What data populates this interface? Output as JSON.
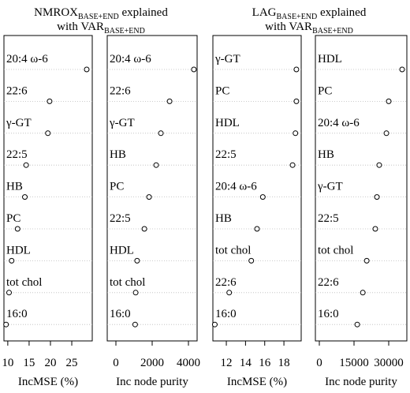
{
  "headers": [
    {
      "main": "NMROX",
      "main_sub": "BASE+END",
      "main_after": " explained",
      "line2": "with VAR",
      "line2_sub": "BASE+END"
    },
    {
      "main": "LAG",
      "main_sub": "BASE+END",
      "main_after": " explained",
      "line2": "with VAR",
      "line2_sub": "BASE+END"
    }
  ],
  "chart_data": [
    {
      "type": "dot",
      "xlabel": "IncMSE (%)",
      "categories": [
        "20:4 ω-6",
        "22:6",
        "γ-GT",
        "22:5",
        "HB",
        "PC",
        "HDL",
        "tot chol",
        "16:0"
      ],
      "values": [
        28.5,
        19.8,
        19.4,
        14.3,
        14.0,
        12.3,
        10.9,
        10.3,
        9.6
      ],
      "xlim": [
        9.1,
        29.8
      ],
      "xticks": [
        10,
        15,
        20,
        25
      ]
    },
    {
      "type": "dot",
      "xlabel": "Inc node purity",
      "categories": [
        "20:4 ω-6",
        "22:6",
        "γ-GT",
        "HB",
        "PC",
        "22:5",
        "HDL",
        "tot chol",
        "16:0"
      ],
      "values": [
        4300,
        2960,
        2480,
        2220,
        1830,
        1570,
        1170,
        1090,
        1060
      ],
      "xlim": [
        -478,
        4478
      ],
      "xticks": [
        0,
        2000,
        4000
      ]
    },
    {
      "type": "dot",
      "xlabel": "IncMSE (%)",
      "categories": [
        "γ-GT",
        "PC",
        "HDL",
        "22:5",
        "20:4 ω-6",
        "HB",
        "tot chol",
        "22:6",
        "16:0"
      ],
      "values": [
        19.3,
        19.3,
        19.2,
        18.9,
        15.8,
        15.2,
        14.6,
        12.3,
        10.8
      ],
      "xlim": [
        10.6,
        19.8
      ],
      "xticks": [
        12,
        14,
        16,
        18
      ]
    },
    {
      "type": "dot",
      "xlabel": "Inc node purity",
      "categories": [
        "HDL",
        "PC",
        "20:4 ω-6",
        "HB",
        "γ-GT",
        "22:5",
        "tot chol",
        "22:6",
        "16:0"
      ],
      "values": [
        35800,
        30000,
        29000,
        25900,
        24900,
        24200,
        20500,
        18800,
        16400
      ],
      "xlim": [
        -1700,
        37840
      ],
      "xticks": [
        0,
        15000,
        30000
      ]
    }
  ]
}
